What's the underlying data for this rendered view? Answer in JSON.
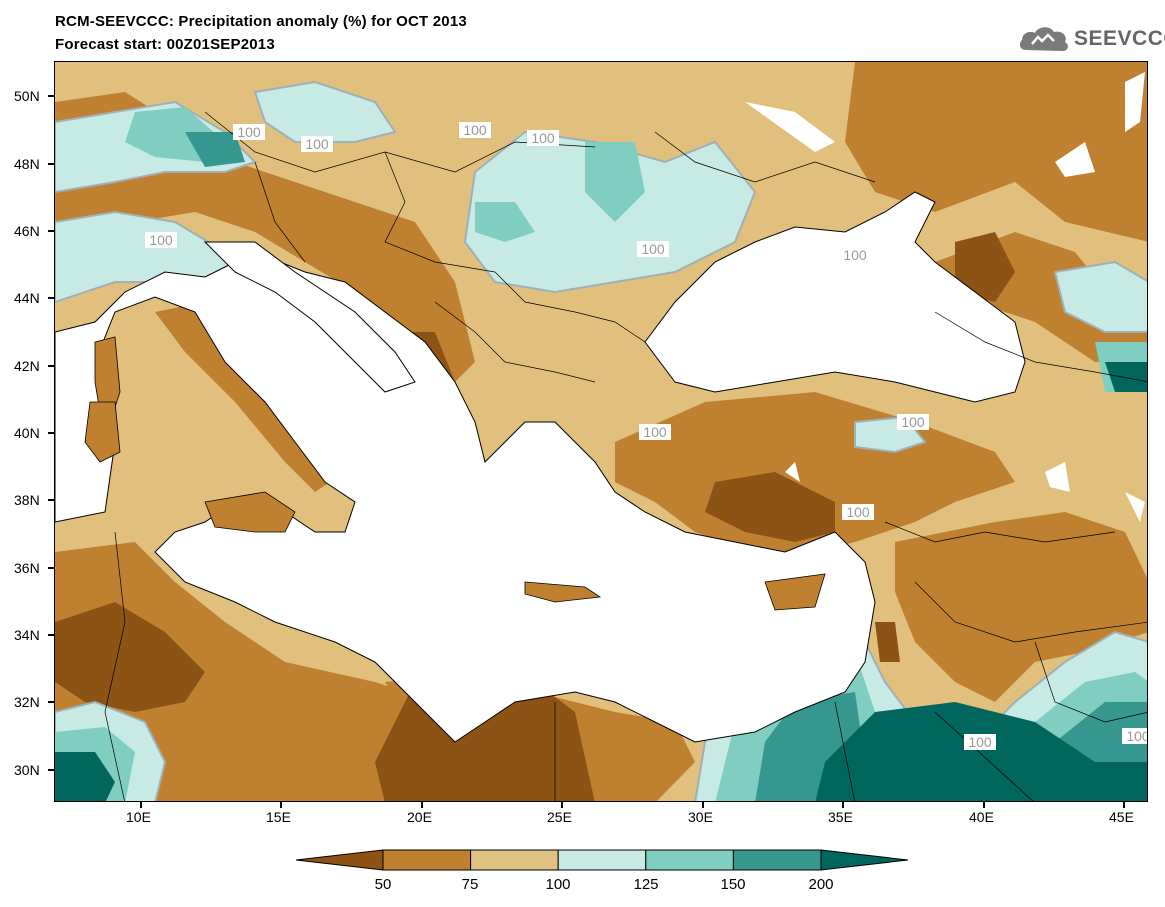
{
  "header": {
    "title_line1": "RCM-SEEVCCC: Precipitation anomaly (%) for OCT 2013",
    "title_line2": "Forecast start: 00Z01SEP2013",
    "logo_text": "SEEVCCC"
  },
  "map": {
    "lon_range": [
      "7E",
      "46E"
    ],
    "lat_range": [
      "29N",
      "51N"
    ],
    "y_axis_labels": [
      "50N",
      "48N",
      "46N",
      "44N",
      "42N",
      "40N",
      "38N",
      "36N",
      "34N",
      "32N",
      "30N"
    ],
    "x_axis_labels": [
      "10E",
      "15E",
      "20E",
      "25E",
      "30E",
      "35E",
      "40E",
      "45E"
    ],
    "contour_label": "100",
    "contour_labels_count": 12
  },
  "legend": {
    "labels": [
      "50",
      "75",
      "100",
      "125",
      "150",
      "200"
    ],
    "colors": [
      "#8c5314",
      "#bf8130",
      "#dfc282",
      "#c7eae4",
      "#80cdc1",
      "#35978f",
      "#01665e"
    ]
  }
}
